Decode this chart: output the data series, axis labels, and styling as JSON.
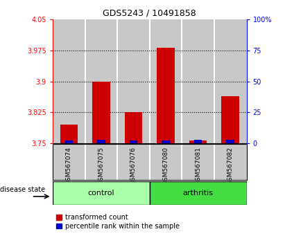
{
  "title": "GDS5243 / 10491858",
  "samples": [
    "GSM567074",
    "GSM567075",
    "GSM567076",
    "GSM567080",
    "GSM567081",
    "GSM567082"
  ],
  "red_values": [
    3.795,
    3.9,
    3.825,
    3.982,
    3.757,
    3.865
  ],
  "blue_values": [
    3.757,
    3.758,
    3.757,
    3.757,
    3.759,
    3.758
  ],
  "baseline": 3.75,
  "ylim_left": [
    3.75,
    4.05
  ],
  "ylim_right": [
    0,
    100
  ],
  "yticks_left": [
    3.75,
    3.825,
    3.9,
    3.975,
    4.05
  ],
  "ytick_labels_left": [
    "3.75",
    "3.825",
    "3.9",
    "3.975",
    "4.05"
  ],
  "yticks_right": [
    0,
    25,
    50,
    75,
    100
  ],
  "ytick_labels_right": [
    "0",
    "25",
    "50",
    "75",
    "100%"
  ],
  "grid_values": [
    3.825,
    3.9,
    3.975
  ],
  "control_color": "#AAFFAA",
  "arthritis_color": "#44DD44",
  "bar_bg_color": "#C8C8C8",
  "red_bar_color": "#CC0000",
  "blue_bar_color": "#0000CC",
  "bar_width": 0.55,
  "blue_bar_width": 0.25,
  "label_red": "transformed count",
  "label_blue": "percentile rank within the sample",
  "disease_state_label": "disease state",
  "control_label": "control",
  "arthritis_label": "arthritis"
}
